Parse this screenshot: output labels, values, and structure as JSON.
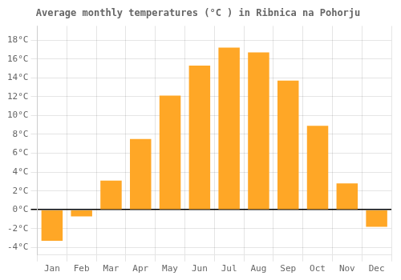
{
  "chart_data": {
    "type": "bar",
    "title": "Average monthly temperatures (°C ) in Ribnica na Pohorju",
    "categories": [
      "Jan",
      "Feb",
      "Mar",
      "Apr",
      "May",
      "Jun",
      "Jul",
      "Aug",
      "Sep",
      "Oct",
      "Nov",
      "Dec"
    ],
    "values": [
      -3.3,
      -0.7,
      3.1,
      7.5,
      12.1,
      15.3,
      17.2,
      16.7,
      13.7,
      8.9,
      2.8,
      -1.8
    ],
    "color": "#FFA726",
    "ylim": [
      -4.8,
      19.5
    ],
    "yticks": [
      {
        "value": -4,
        "label": "-4°C"
      },
      {
        "value": -2,
        "label": "-2°C"
      },
      {
        "value": 0,
        "label": "0°C"
      },
      {
        "value": 2,
        "label": "2°C"
      },
      {
        "value": 4,
        "label": "4°C"
      },
      {
        "value": 6,
        "label": "6°C"
      },
      {
        "value": 8,
        "label": "8°C"
      },
      {
        "value": 10,
        "label": "10°C"
      },
      {
        "value": 12,
        "label": "12°C"
      },
      {
        "value": 14,
        "label": "14°C"
      },
      {
        "value": 16,
        "label": "16°C"
      },
      {
        "value": 18,
        "label": "18°C"
      }
    ],
    "grid": true
  }
}
